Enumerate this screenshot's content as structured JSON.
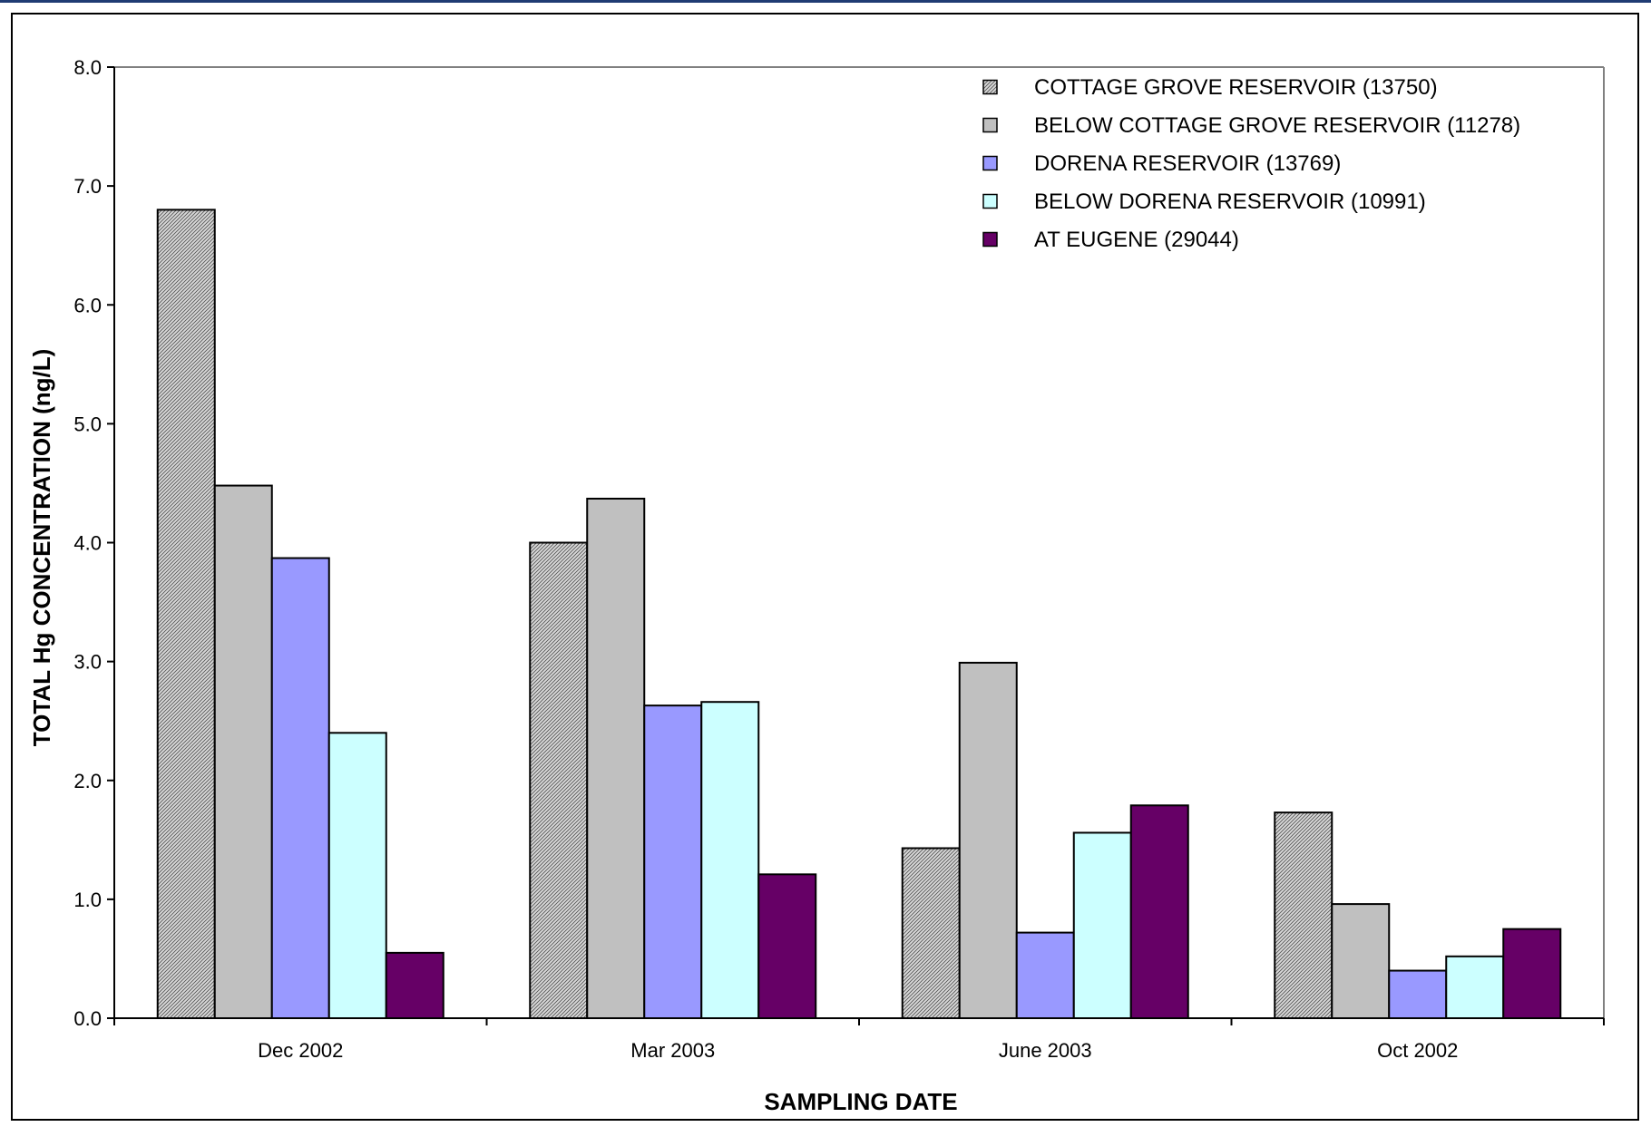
{
  "chart_data": {
    "type": "bar",
    "title": "",
    "xlabel": "SAMPLING DATE",
    "ylabel": "TOTAL Hg CONCENTRATION (ng/L)",
    "ylim": [
      0,
      8
    ],
    "yticks": [
      "0.0",
      "1.0",
      "2.0",
      "3.0",
      "4.0",
      "5.0",
      "6.0",
      "7.0",
      "8.0"
    ],
    "categories": [
      "Dec 2002",
      "Mar 2003",
      "June 2003",
      "Oct 2002"
    ],
    "grid": false,
    "legend_position": "top-right",
    "series": [
      {
        "name": "COTTAGE GROVE RESERVOIR (13750)",
        "values": [
          6.8,
          4.0,
          1.43,
          1.73
        ],
        "color": "#c0c0c0",
        "pattern": "hatch"
      },
      {
        "name": "BELOW COTTAGE GROVE RESERVOIR (11278)",
        "values": [
          4.48,
          4.37,
          2.99,
          0.96
        ],
        "color": "#c0c0c0",
        "pattern": "solid"
      },
      {
        "name": "DORENA RESERVOIR (13769)",
        "values": [
          3.87,
          2.63,
          0.72,
          0.4
        ],
        "color": "#9999ff",
        "pattern": "solid"
      },
      {
        "name": "BELOW DORENA RESERVOIR (10991)",
        "values": [
          2.4,
          2.66,
          1.56,
          0.52
        ],
        "color": "#ccffff",
        "pattern": "solid"
      },
      {
        "name": "AT EUGENE (29044)",
        "values": [
          0.55,
          1.21,
          1.79,
          0.75
        ],
        "color": "#660066",
        "pattern": "solid"
      }
    ]
  }
}
